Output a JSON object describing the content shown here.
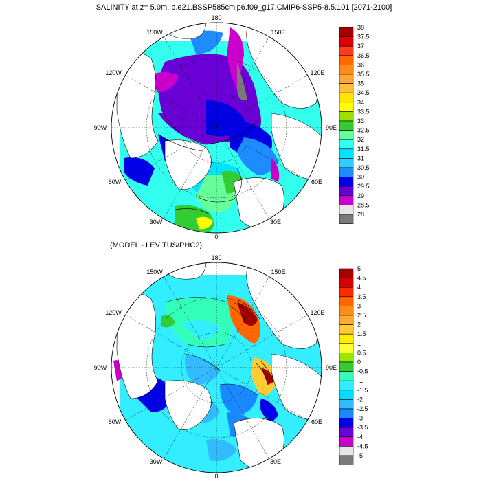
{
  "title": "SALINITY at z=   5.0m, b.e21.BSSP585cmip6.f09_g17.CMIP6-SSP5-8.5.101 [2071-2100]",
  "subtitle": "(MODEL - LEVITUS/PHC2)",
  "longitude_labels": {
    "top": "180",
    "upper_left": "150W",
    "upper_right": "150E",
    "mid_upper_left": "120W",
    "mid_upper_right": "120E",
    "left": "90W",
    "right": "90E",
    "lower_left": "60W",
    "lower_right": "60E",
    "bottom_left": "30W",
    "bottom_right": "30E",
    "bottom": "0"
  },
  "colorbar_top": {
    "labels": [
      "38",
      "37.5",
      "37",
      "36.5",
      "36",
      "35.5",
      "35",
      "34.5",
      "34",
      "33.5",
      "33",
      "32.5",
      "32",
      "31.5",
      "31",
      "30.5",
      "30",
      "29.5",
      "29",
      "28.5",
      "28"
    ],
    "colors": [
      "#a50000",
      "#e00000",
      "#ff3b1f",
      "#ff6a00",
      "#ff8c1a",
      "#ffa53a",
      "#ffbe3c",
      "#ffe500",
      "#ffff00",
      "#9be000",
      "#33cc33",
      "#66ff99",
      "#33ffee",
      "#00e5ff",
      "#33ccff",
      "#1e8cff",
      "#0000e6",
      "#6a00d6",
      "#cc00cc",
      "#e6e6e6",
      "#7a7a7a"
    ]
  },
  "colorbar_bottom": {
    "labels": [
      "5",
      "4.5",
      "4",
      "3.5",
      "3",
      "2.5",
      "2",
      "1.5",
      "1",
      "0.5",
      "0",
      "-0.5",
      "-1",
      "-1.5",
      "-2",
      "-2.5",
      "-3",
      "-3.5",
      "-4",
      "-4.5",
      "-5"
    ],
    "colors": [
      "#a50000",
      "#d60000",
      "#ff2b00",
      "#ff6600",
      "#ff8c1a",
      "#ffaa33",
      "#ffcc33",
      "#ffee00",
      "#ffff33",
      "#99e600",
      "#33cc33",
      "#33ffbb",
      "#33eeff",
      "#00ddff",
      "#33bbff",
      "#1a88ff",
      "#0000e6",
      "#6a00d6",
      "#cc00cc",
      "#e6e6e6",
      "#7a7a7a"
    ]
  }
}
